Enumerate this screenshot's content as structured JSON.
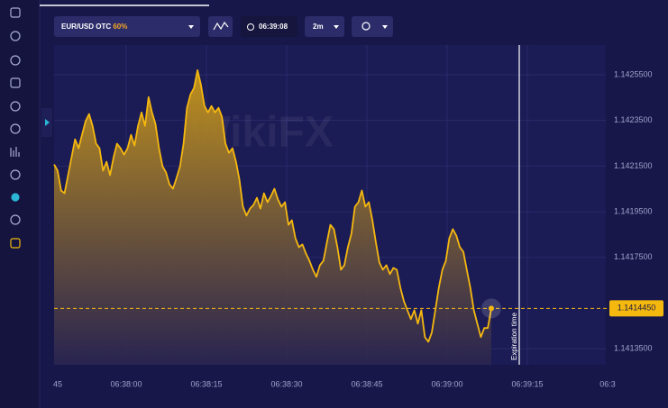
{
  "toolbar": {
    "asset": "EUR/USD OTC",
    "payout": "60%",
    "timer": "06:39:08",
    "timeframe": "2m"
  },
  "chart_data": {
    "type": "line",
    "color": "#f5b80f",
    "values": [
      1.142157,
      1.14213,
      1.142043,
      1.142031,
      1.14211,
      1.142189,
      1.142267,
      1.142228,
      1.142287,
      1.142346,
      1.142378,
      1.142326,
      1.142248,
      1.142228,
      1.14213,
      1.142169,
      1.14211,
      1.142189,
      1.142248,
      1.142228,
      1.1422,
      1.142228,
      1.142287,
      1.14224,
      1.142326,
      1.142385,
      1.142326,
      1.142452,
      1.142385,
      1.142334,
      1.142228,
      1.142149,
      1.142122,
      1.14207,
      1.142051,
      1.142098,
      1.142149,
      1.142248,
      1.142405,
      1.142464,
      1.142492,
      1.14257,
      1.142504,
      1.142413,
      1.142385,
      1.142413,
      1.142385,
      1.142405,
      1.142366,
      1.142248,
      1.142208,
      1.142228,
      1.142169,
      1.14209,
      1.141972,
      1.141933,
      1.141964,
      1.14198,
      1.142011,
      1.141964,
      1.142031,
      1.141992,
      1.142019,
      1.142051,
      1.142004,
      1.141972,
      1.141992,
      1.141893,
      1.141913,
      1.141834,
      1.141795,
      1.141807,
      1.141767,
      1.141736,
      1.141696,
      1.141665,
      1.141716,
      1.141736,
      1.141815,
      1.141893,
      1.141874,
      1.141795,
      1.141696,
      1.141716,
      1.141795,
      1.141854,
      1.141972,
      1.141992,
      1.142043,
      1.141972,
      1.141992,
      1.141913,
      1.141815,
      1.141728,
      1.141696,
      1.141716,
      1.141677,
      1.141704,
      1.141696,
      1.141618,
      1.141559,
      1.141519,
      1.14148,
      1.141519,
      1.14146,
      1.141519,
      1.141401,
      1.141381,
      1.141421,
      1.141519,
      1.141618,
      1.141696,
      1.141736,
      1.141834,
      1.141874,
      1.141846,
      1.141795,
      1.141775,
      1.141696,
      1.141618,
      1.141519,
      1.14146,
      1.141401,
      1.141441,
      1.141441,
      1.141527
    ],
    "ylim": [
      1.14128,
      1.14268
    ],
    "yticks": [
      {
        "value": 1.14255,
        "label": "1.1425500"
      },
      {
        "value": 1.14235,
        "label": "1.1423500"
      },
      {
        "value": 1.14215,
        "label": "1.1421500"
      },
      {
        "value": 1.14195,
        "label": "1.1419500"
      },
      {
        "value": 1.14175,
        "label": "1.1417500"
      },
      {
        "value": 1.14135,
        "label": "1.1413500"
      }
    ],
    "xtick_labels": [
      "45",
      "06:38:00",
      "06:38:15",
      "06:38:30",
      "06:38:45",
      "06:39:00",
      "06:39:15",
      "06:3"
    ],
    "grid": true,
    "current_price": "1.1414450",
    "annotation": "Expiration time",
    "watermark": "WikiFX"
  }
}
